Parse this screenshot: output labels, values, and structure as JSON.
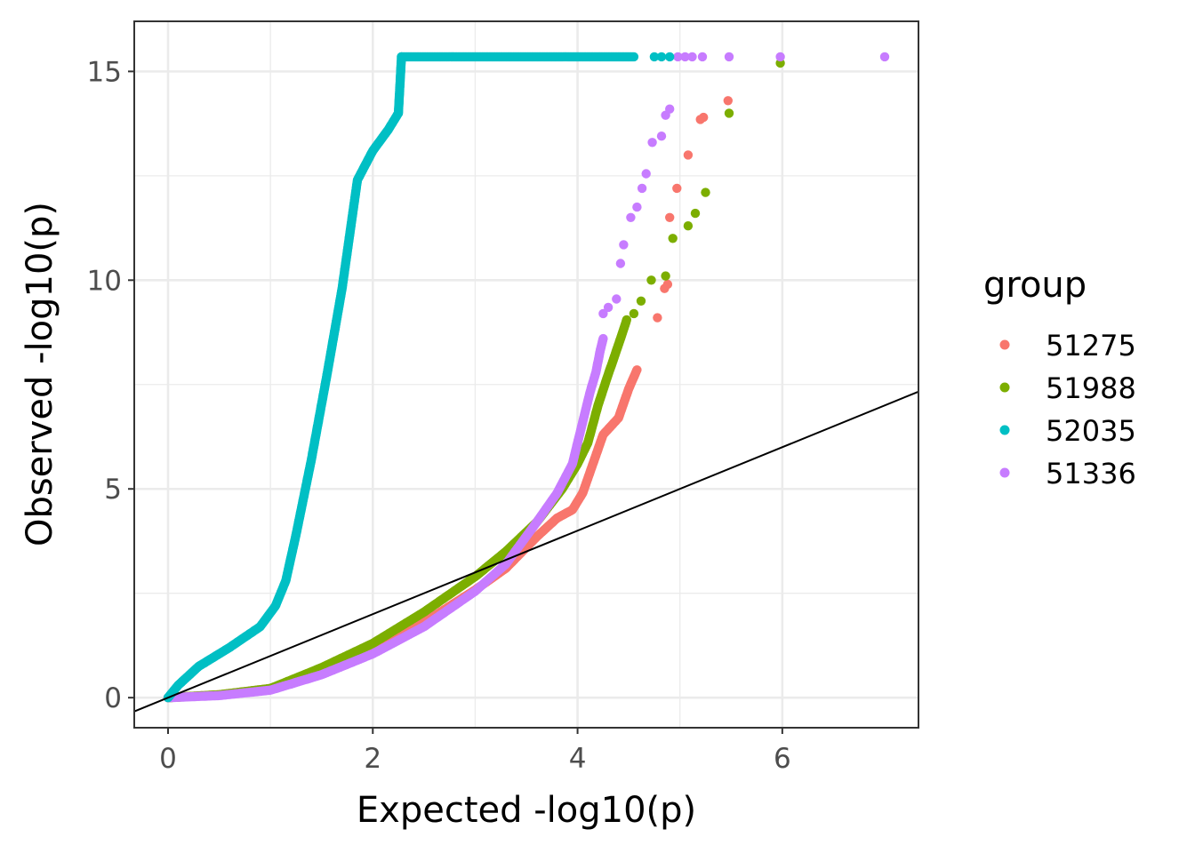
{
  "chart_data": {
    "type": "scatter",
    "title": "",
    "xlabel": "Expected -log10(p)",
    "ylabel": "Observed -log10(p)",
    "xlim": [
      -0.33,
      7.33
    ],
    "ylim": [
      -0.72,
      16.2
    ],
    "x_ticks": [
      0,
      2,
      4,
      6
    ],
    "y_ticks": [
      0,
      5,
      10,
      15
    ],
    "x_tick_labels": [
      "0",
      "2",
      "4",
      "6"
    ],
    "y_tick_labels": [
      "0",
      "5",
      "10",
      "15"
    ],
    "grid": true,
    "reference_line": {
      "slope": 1,
      "intercept": 0
    },
    "legend": {
      "title": "group",
      "position": "right"
    },
    "series": [
      {
        "name": "51275",
        "color": "#F8766D",
        "curve": [
          [
            0,
            0
          ],
          [
            0.5,
            0.07
          ],
          [
            1.0,
            0.22
          ],
          [
            1.5,
            0.62
          ],
          [
            2.0,
            1.15
          ],
          [
            2.5,
            1.8
          ],
          [
            3.0,
            2.58
          ],
          [
            3.3,
            3.1
          ],
          [
            3.6,
            3.85
          ],
          [
            3.8,
            4.3
          ],
          [
            3.95,
            4.5
          ],
          [
            4.05,
            4.9
          ],
          [
            4.15,
            5.6
          ],
          [
            4.25,
            6.3
          ],
          [
            4.4,
            6.7
          ],
          [
            4.5,
            7.4
          ],
          [
            4.58,
            7.85
          ]
        ],
        "outliers": [
          [
            4.78,
            9.1
          ],
          [
            4.88,
            9.9
          ],
          [
            4.85,
            9.8
          ],
          [
            4.9,
            11.5
          ],
          [
            4.97,
            12.2
          ],
          [
            5.08,
            13.0
          ],
          [
            5.2,
            13.85
          ],
          [
            5.23,
            13.9
          ],
          [
            5.47,
            14.3
          ]
        ]
      },
      {
        "name": "51988",
        "color": "#7CAE00",
        "curve": [
          [
            0,
            0
          ],
          [
            0.5,
            0.07
          ],
          [
            1.0,
            0.22
          ],
          [
            1.5,
            0.72
          ],
          [
            2.0,
            1.3
          ],
          [
            2.5,
            2.05
          ],
          [
            3.0,
            2.9
          ],
          [
            3.3,
            3.5
          ],
          [
            3.6,
            4.2
          ],
          [
            3.85,
            5.0
          ],
          [
            4.0,
            5.6
          ],
          [
            4.1,
            6.1
          ],
          [
            4.2,
            7.0
          ],
          [
            4.28,
            7.6
          ],
          [
            4.35,
            8.1
          ],
          [
            4.42,
            8.6
          ],
          [
            4.48,
            9.05
          ]
        ],
        "outliers": [
          [
            4.55,
            9.2
          ],
          [
            4.62,
            9.5
          ],
          [
            4.72,
            10.0
          ],
          [
            4.86,
            10.1
          ],
          [
            4.93,
            11.0
          ],
          [
            5.08,
            11.3
          ],
          [
            5.15,
            11.6
          ],
          [
            5.25,
            12.1
          ],
          [
            5.48,
            14.0
          ],
          [
            5.98,
            15.2
          ]
        ]
      },
      {
        "name": "52035",
        "color": "#00BFC4",
        "curve": [
          [
            0,
            0
          ],
          [
            0.1,
            0.3
          ],
          [
            0.3,
            0.75
          ],
          [
            0.6,
            1.2
          ],
          [
            0.9,
            1.7
          ],
          [
            1.05,
            2.2
          ],
          [
            1.15,
            2.8
          ],
          [
            1.25,
            3.9
          ],
          [
            1.4,
            5.7
          ],
          [
            1.55,
            7.7
          ],
          [
            1.7,
            9.8
          ],
          [
            1.85,
            12.4
          ],
          [
            2.0,
            13.1
          ],
          [
            2.15,
            13.6
          ],
          [
            2.2,
            13.8
          ],
          [
            2.25,
            14.0
          ],
          [
            2.28,
            15.35
          ]
        ],
        "plateau": {
          "y": 15.35,
          "x_from": 2.28,
          "x_to": 4.55
        },
        "outliers": [
          [
            4.75,
            15.35
          ],
          [
            4.82,
            15.35
          ],
          [
            4.9,
            15.35
          ]
        ]
      },
      {
        "name": "51336",
        "color": "#C77CFF",
        "curve": [
          [
            0,
            0
          ],
          [
            0.5,
            0.05
          ],
          [
            1.0,
            0.18
          ],
          [
            1.5,
            0.55
          ],
          [
            2.0,
            1.05
          ],
          [
            2.5,
            1.7
          ],
          [
            3.0,
            2.55
          ],
          [
            3.3,
            3.2
          ],
          [
            3.6,
            4.2
          ],
          [
            3.8,
            4.9
          ],
          [
            3.95,
            5.6
          ],
          [
            4.05,
            6.6
          ],
          [
            4.12,
            7.3
          ],
          [
            4.18,
            7.8
          ],
          [
            4.22,
            8.3
          ],
          [
            4.25,
            8.6
          ]
        ],
        "outliers": [
          [
            4.25,
            9.2
          ],
          [
            4.3,
            9.35
          ],
          [
            4.38,
            9.55
          ],
          [
            4.42,
            10.4
          ],
          [
            4.45,
            10.85
          ],
          [
            4.52,
            11.5
          ],
          [
            4.58,
            11.75
          ],
          [
            4.63,
            12.2
          ],
          [
            4.67,
            12.55
          ],
          [
            4.73,
            13.3
          ],
          [
            4.82,
            13.45
          ],
          [
            4.86,
            13.95
          ],
          [
            4.9,
            14.1
          ],
          [
            4.98,
            15.35
          ],
          [
            5.05,
            15.35
          ],
          [
            5.12,
            15.35
          ],
          [
            5.22,
            15.35
          ],
          [
            5.48,
            15.35
          ],
          [
            5.98,
            15.35
          ],
          [
            7.0,
            15.35
          ]
        ]
      }
    ]
  }
}
